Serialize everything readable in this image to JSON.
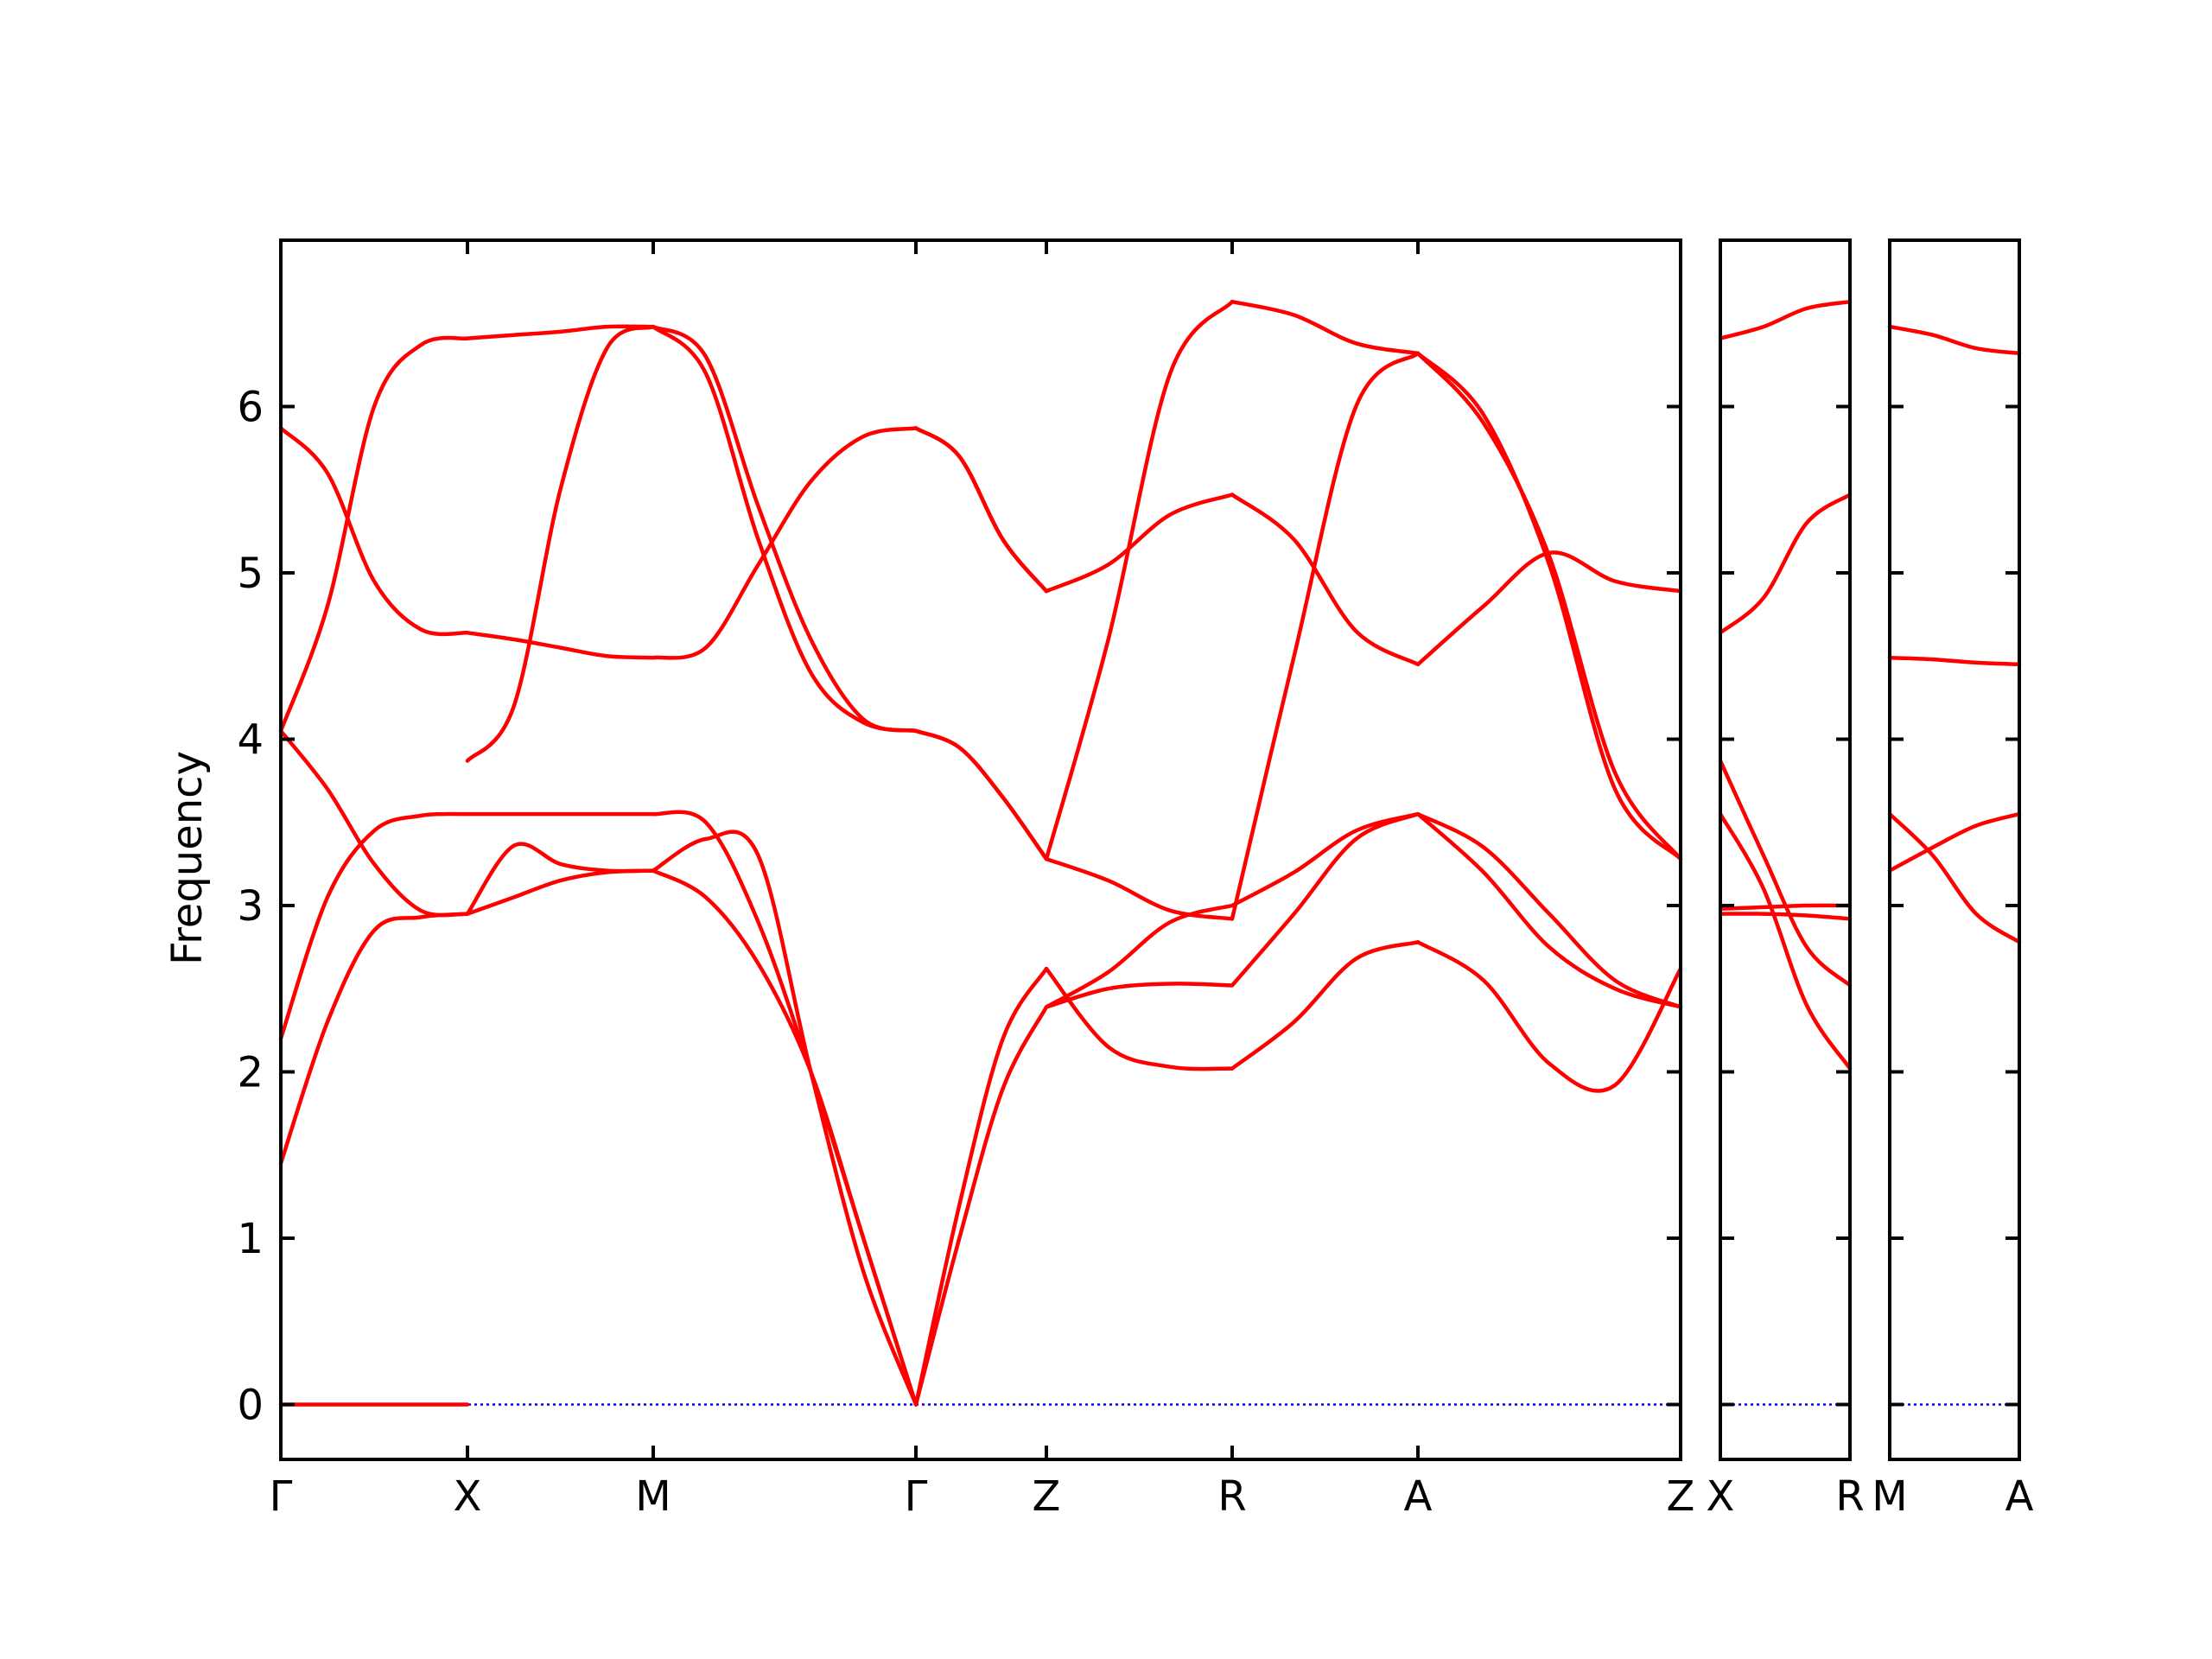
{
  "chart_data": {
    "type": "line",
    "title": "",
    "xlabel": "",
    "ylabel": "Frequency",
    "ylim": [
      -0.33,
      7.0
    ],
    "yticks": [
      0,
      1,
      2,
      3,
      4,
      5,
      6
    ],
    "grid": false,
    "legend": "none",
    "colors": {
      "band": "#ff0000",
      "zero_line": "#0000ff"
    },
    "panels": [
      {
        "segments": [
          {
            "from": "Γ",
            "to": "X",
            "bands": [
              [
                0.0,
                0.0,
                0.0,
                0.0,
                0.0
              ],
              [
                1.45,
                2.3,
                2.85,
                2.93,
                2.95
              ],
              [
                2.2,
                3.05,
                3.45,
                3.54,
                3.55
              ],
              [
                4.05,
                3.7,
                3.25,
                2.97,
                2.95
              ],
              [
                4.05,
                4.8,
                6.0,
                6.37,
                6.41
              ],
              [
                5.87,
                5.6,
                4.95,
                4.66,
                4.64
              ]
            ]
          },
          {
            "from": "X",
            "to": "M",
            "bands": [
              [
                2.95,
                3.05,
                3.15,
                3.2,
                3.21
              ],
              [
                2.95,
                3.36,
                3.25,
                3.21,
                3.21
              ],
              [
                3.55,
                3.55,
                3.55,
                3.55,
                3.55
              ],
              [
                3.87,
                4.2,
                5.5,
                6.35,
                6.48
              ],
              [
                4.64,
                4.6,
                4.55,
                4.5,
                4.49
              ],
              [
                6.41,
                6.43,
                6.45,
                6.48,
                6.48
              ]
            ]
          },
          {
            "from": "M",
            "to": "Γ",
            "bands": [
              [
                3.21,
                3.05,
                2.65,
                2.0,
                1.0,
                0.0
              ],
              [
                3.21,
                3.4,
                3.3,
                2.0,
                0.8,
                0.0
              ],
              [
                3.55,
                3.5,
                2.9,
                2.0,
                1.0,
                0.0
              ],
              [
                4.49,
                4.55,
                5.05,
                5.55,
                5.82,
                5.87
              ],
              [
                6.48,
                6.2,
                5.2,
                4.4,
                4.1,
                4.05
              ],
              [
                6.48,
                6.3,
                5.4,
                4.6,
                4.12,
                4.05
              ]
            ]
          },
          {
            "from": "Γ",
            "to": "Z",
            "bands": [
              [
                0.0,
                1.0,
                1.9,
                2.39
              ],
              [
                0.0,
                1.2,
                2.2,
                2.62
              ],
              [
                4.05,
                3.95,
                3.65,
                3.28
              ],
              [
                4.05,
                3.95,
                3.65,
                3.28
              ],
              [
                5.87,
                5.7,
                5.2,
                4.89
              ],
              [
                5.87,
                5.7,
                5.2,
                4.89
              ]
            ]
          },
          {
            "from": "Z",
            "to": "R",
            "bands": [
              [
                2.39,
                2.5,
                2.53,
                2.52
              ],
              [
                2.62,
                2.15,
                2.03,
                2.02
              ],
              [
                3.28,
                3.15,
                2.97,
                2.92
              ],
              [
                3.28,
                4.6,
                6.2,
                6.63
              ],
              [
                4.89,
                5.05,
                5.35,
                5.47
              ],
              [
                2.39,
                2.6,
                2.9,
                3.0
              ]
            ]
          },
          {
            "from": "R",
            "to": "A",
            "bands": [
              [
                2.52,
                2.95,
                3.4,
                3.55
              ],
              [
                2.02,
                2.3,
                2.68,
                2.78
              ],
              [
                2.92,
                4.5,
                6.0,
                6.32
              ],
              [
                6.63,
                6.55,
                6.38,
                6.32
              ],
              [
                5.47,
                5.2,
                4.65,
                4.45
              ],
              [
                3.0,
                3.2,
                3.45,
                3.55
              ]
            ]
          },
          {
            "from": "A",
            "to": "Z",
            "bands": [
              [
                3.55,
                3.2,
                2.75,
                2.5,
                2.39
              ],
              [
                2.78,
                2.55,
                2.05,
                1.92,
                2.62
              ],
              [
                6.32,
                5.9,
                5.1,
                3.8,
                3.28
              ],
              [
                6.32,
                5.95,
                5.05,
                3.7,
                3.28
              ],
              [
                4.45,
                4.8,
                5.12,
                4.95,
                4.89
              ],
              [
                3.55,
                3.35,
                2.95,
                2.55,
                2.39
              ]
            ]
          }
        ]
      },
      {
        "segments": [
          {
            "from": "X",
            "to": "R",
            "bands": [
              [
                2.95,
                2.95,
                2.94,
                2.92
              ],
              [
                2.98,
                2.99,
                3.0,
                3.0
              ],
              [
                3.55,
                3.1,
                2.4,
                2.02
              ],
              [
                3.87,
                3.3,
                2.75,
                2.52
              ],
              [
                4.64,
                4.85,
                5.3,
                5.47
              ],
              [
                6.41,
                6.48,
                6.59,
                6.63
              ]
            ]
          }
        ]
      },
      {
        "segments": [
          {
            "from": "M",
            "to": "A",
            "bands": [
              [
                3.21,
                3.35,
                3.48,
                3.55
              ],
              [
                3.55,
                3.3,
                2.95,
                2.78
              ],
              [
                4.49,
                4.48,
                4.46,
                4.45
              ],
              [
                6.48,
                6.43,
                6.35,
                6.32
              ]
            ]
          }
        ]
      }
    ],
    "tick_labels": {
      "panel_1": [
        "Γ",
        "X",
        "M",
        "Γ",
        "Z",
        "R",
        "A",
        "Z"
      ],
      "panel_2": [
        "X",
        "R"
      ],
      "panel_3": [
        "M",
        "A"
      ]
    },
    "y_tick_labels": [
      "0",
      "1",
      "2",
      "3",
      "4",
      "5",
      "6"
    ]
  }
}
